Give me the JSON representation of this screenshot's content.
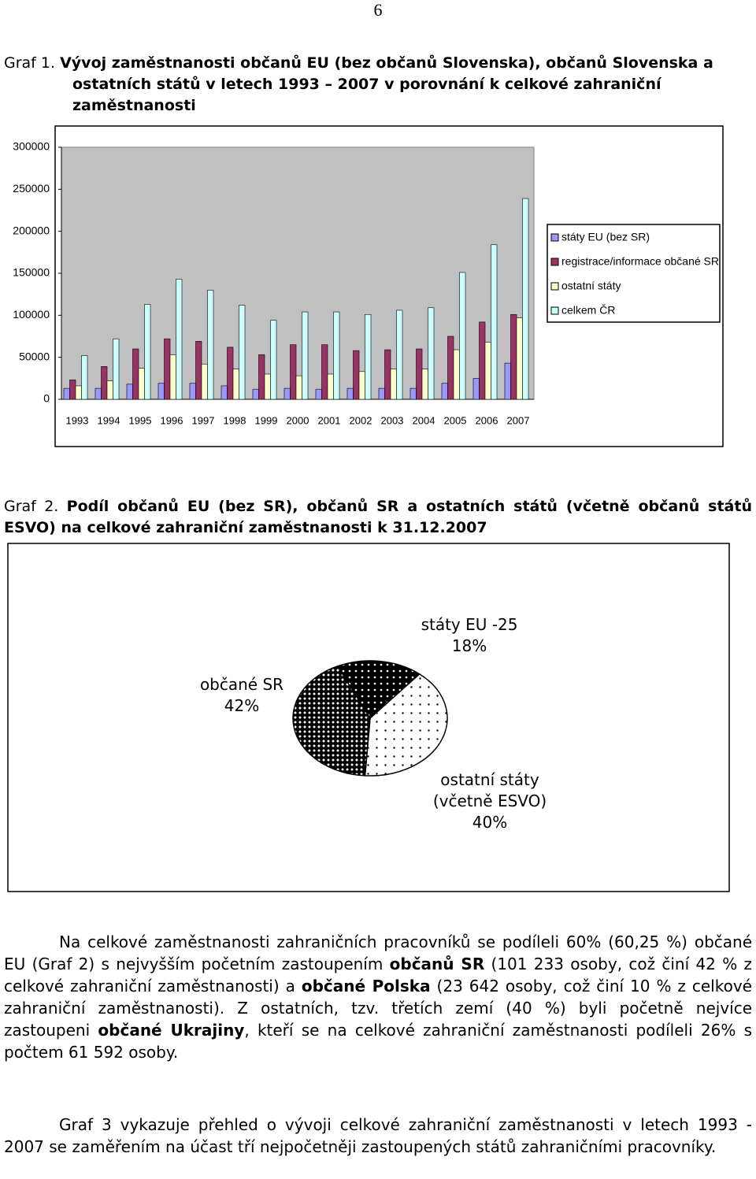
{
  "page_number": "6",
  "chart_data": [
    {
      "type": "bar",
      "label": "Graf 1.",
      "title": "Vývoj zaměstnanosti občanů EU (bez občanů Slovenska), občanů Slovenska a ostatních států v letech 1993 – 2007 v porovnání k celkové zahraniční zaměstnanosti",
      "categories": [
        "1993",
        "1994",
        "1995",
        "1996",
        "1997",
        "1998",
        "1999",
        "2000",
        "2001",
        "2002",
        "2003",
        "2004",
        "2005",
        "2006",
        "2007"
      ],
      "series": [
        {
          "name": "státy EU (bez SR)",
          "color": "#9999ff",
          "values": [
            13000,
            13000,
            18000,
            19000,
            19000,
            16000,
            12000,
            13000,
            12000,
            13000,
            13000,
            13000,
            19000,
            25000,
            43000
          ]
        },
        {
          "name": "registrace/informace občané SR",
          "color": "#993366",
          "values": [
            23000,
            39000,
            60000,
            72000,
            69000,
            62000,
            53000,
            65000,
            65000,
            58000,
            59000,
            60000,
            75000,
            92000,
            101000
          ]
        },
        {
          "name": "ostatní státy",
          "color": "#ffffcc",
          "values": [
            16000,
            22000,
            37000,
            53000,
            42000,
            36000,
            30000,
            28000,
            30000,
            33000,
            36000,
            36000,
            59000,
            68000,
            97000
          ]
        },
        {
          "name": "celkem ČR",
          "color": "#ccffff",
          "values": [
            52000,
            72000,
            113000,
            143000,
            130000,
            112000,
            94000,
            104000,
            104000,
            101000,
            106000,
            109000,
            151000,
            184000,
            239000
          ]
        }
      ],
      "ylim": [
        0,
        300000
      ],
      "yticks": [
        0,
        50000,
        100000,
        150000,
        200000,
        250000,
        300000
      ],
      "grid": false,
      "legend": "right"
    },
    {
      "type": "pie",
      "label": "Graf 2.",
      "title": "Podíl občanů EU (bez SR), občanů SR a ostatních států (včetně občanů států ESVO) na celkové zahraniční zaměstnanosti k 31.12.2007",
      "categories": [
        "státy EU -25",
        "ostatní státy (včetně ESVO)",
        "občané SR"
      ],
      "values": [
        18,
        40,
        42
      ],
      "value_labels": [
        "18%",
        "40%",
        "42%"
      ],
      "colors": [
        "#000000",
        "#ffffff",
        "#000000"
      ]
    }
  ],
  "paragraphs": [
    [
      {
        "text": "Na celkové zaměstnanosti zahraničních pracovníků se podíleli 60% (60,25 %) občané EU (Graf 2) s nejvyšším početním zastoupením ",
        "bold": false
      },
      {
        "text": "občanů SR",
        "bold": true
      },
      {
        "text": " (101 233 osoby, což činí 42 % z celkové zahraniční zaměstnanosti) a ",
        "bold": false
      },
      {
        "text": "občané Polska",
        "bold": true
      },
      {
        "text": " (23 642 osoby, což činí 10 % z celkové zahraniční zaměstnanosti). Z ostatních, tzv. třetích zemí (40 %) byli početně nejvíce zastoupeni ",
        "bold": false
      },
      {
        "text": "občané Ukrajiny",
        "bold": true
      },
      {
        "text": ", kteří se na celkové zahraniční zaměstnanosti podíleli 26% s počtem 61 592 osoby.",
        "bold": false
      }
    ],
    [
      {
        "text": "Graf 3 vykazuje přehled o vývoji celkové zahraniční zaměstnanosti v letech 1993 - 2007 se zaměřením na účast tří nejpočetněji zastoupených států zahraničními pracovníky.",
        "bold": false
      }
    ]
  ]
}
